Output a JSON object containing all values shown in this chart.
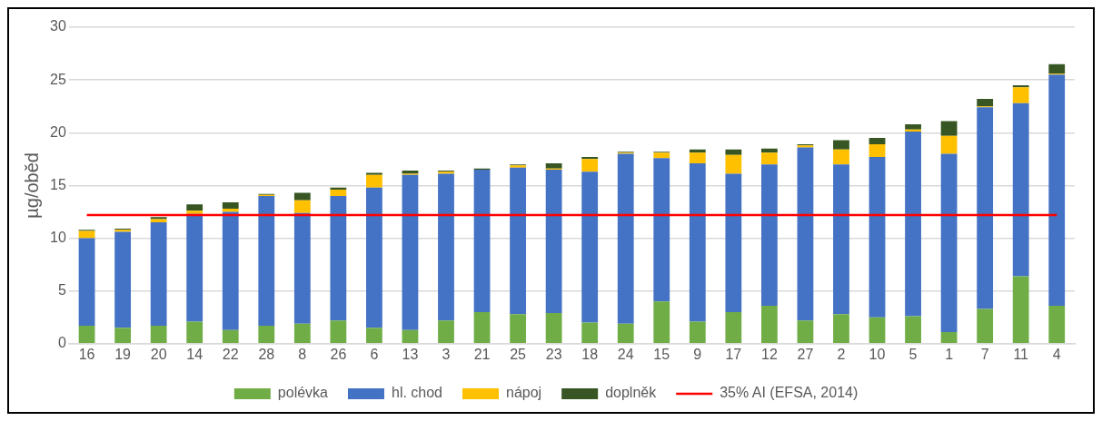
{
  "chart_data": {
    "type": "bar",
    "stacked": true,
    "ylabel": "µg/oběd",
    "categories": [
      "16",
      "19",
      "20",
      "14",
      "22",
      "28",
      "8",
      "26",
      "6",
      "13",
      "3",
      "21",
      "25",
      "23",
      "18",
      "24",
      "15",
      "9",
      "17",
      "12",
      "27",
      "2",
      "10",
      "5",
      "1",
      "7",
      "11",
      "4"
    ],
    "series": [
      {
        "name": "polévka",
        "color": "#70ad47",
        "values": [
          1.7,
          1.5,
          1.7,
          2.1,
          1.3,
          1.7,
          1.9,
          2.2,
          1.5,
          1.3,
          2.2,
          3.0,
          2.8,
          2.9,
          2.0,
          1.9,
          4.0,
          2.1,
          3.0,
          3.6,
          2.2,
          2.8,
          2.5,
          2.6,
          1.1,
          3.3,
          6.4,
          3.6
        ]
      },
      {
        "name": "hl. chod",
        "color": "#4472c4",
        "values": [
          8.3,
          9.1,
          9.8,
          10.2,
          11.2,
          12.3,
          10.5,
          11.8,
          13.3,
          14.7,
          13.9,
          13.5,
          13.9,
          13.6,
          14.3,
          16.1,
          13.6,
          15.0,
          13.1,
          13.4,
          16.4,
          14.2,
          15.2,
          17.5,
          16.9,
          19.1,
          16.4,
          21.9
        ]
      },
      {
        "name": "nápoj",
        "color": "#ffc000",
        "values": [
          0.7,
          0.2,
          0.3,
          0.3,
          0.3,
          0.1,
          1.2,
          0.6,
          1.2,
          0.1,
          0.2,
          0.0,
          0.2,
          0.1,
          1.2,
          0.1,
          0.5,
          1.0,
          1.8,
          1.1,
          0.2,
          1.4,
          1.2,
          0.2,
          1.7,
          0.1,
          1.5,
          0.1
        ]
      },
      {
        "name": "doplněk",
        "color": "#375623",
        "values": [
          0.1,
          0.1,
          0.2,
          0.6,
          0.6,
          0.1,
          0.7,
          0.2,
          0.2,
          0.3,
          0.1,
          0.1,
          0.1,
          0.5,
          0.2,
          0.1,
          0.1,
          0.3,
          0.5,
          0.4,
          0.1,
          0.9,
          0.6,
          0.5,
          1.4,
          0.7,
          0.2,
          0.9
        ]
      }
    ],
    "ref_lines": [
      {
        "axis": "y",
        "value": 12.2,
        "label": "35% AI (EFSA, 2014)",
        "color": "#ff0000"
      }
    ],
    "ylim": [
      0,
      30
    ],
    "yticks": [
      0,
      5,
      10,
      15,
      20,
      25,
      30
    ],
    "grid": "y",
    "legend": "bottom"
  }
}
